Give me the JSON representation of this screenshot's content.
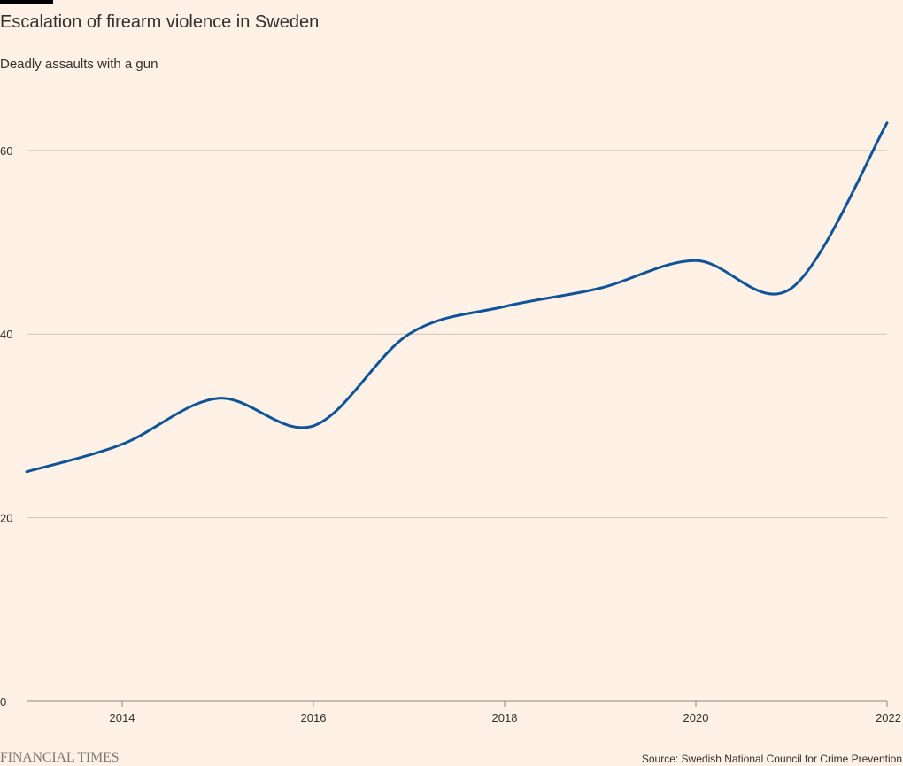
{
  "title": "Escalation of firearm violence in Sweden",
  "subtitle": "Deadly assaults with a gun",
  "source": "Source: Swedish National Council for Crime Prevention",
  "brand": "FINANCIAL TIMES",
  "colors": {
    "background": "#fff1e5",
    "line": "#0f5499",
    "grid": "#ccc1b7",
    "text": "#33302e",
    "brand": "#807973",
    "top_bar": "#000000"
  },
  "chart_data": {
    "type": "line",
    "title": "Escalation of firearm violence in Sweden",
    "subtitle": "Deadly assaults with a gun",
    "x": [
      2013,
      2014,
      2015,
      2016,
      2017,
      2018,
      2019,
      2020,
      2021,
      2022
    ],
    "series": [
      {
        "values": [
          25,
          28,
          33,
          30,
          40,
          43,
          45,
          48,
          45,
          63
        ]
      }
    ],
    "xlim": [
      2013,
      2022
    ],
    "ylim": [
      0,
      65
    ],
    "x_ticks": [
      2014,
      2016,
      2018,
      2020,
      2022
    ],
    "y_ticks": [
      0,
      20,
      40,
      60
    ],
    "grid": true,
    "xlabel": "",
    "ylabel": ""
  }
}
